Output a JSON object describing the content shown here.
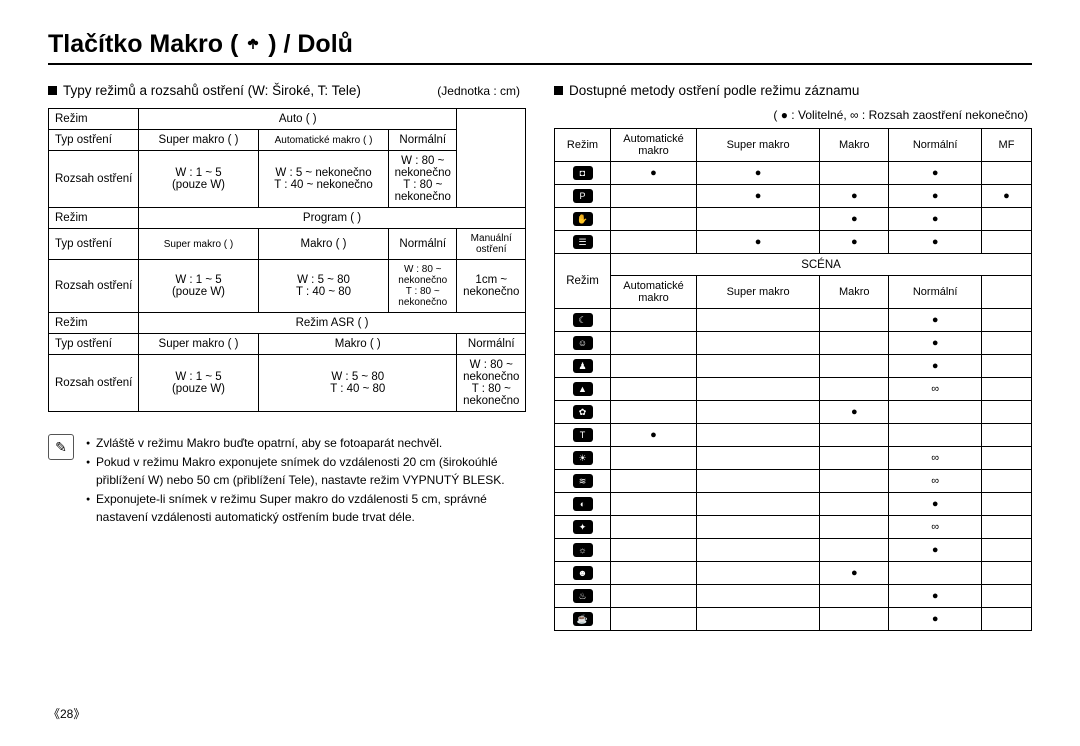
{
  "title": "Tlačítko Makro (    ) / Dolů",
  "left": {
    "heading": "Typy režimů a rozsahů ostření (W: Široké, T: Tele)",
    "unit": "(Jednotka : cm)",
    "t1": {
      "rMode": "Režim",
      "rType": "Typ ostření",
      "rRange": "Rozsah ostření",
      "auto": "Auto (     )",
      "program": "Program (     )",
      "asr": "Režim ASR (     )",
      "superMakro": "Super makro (   )",
      "superMakroSm": "Super makro (   )",
      "autoMakro": "Automatické makro (    )",
      "makro": "Makro (    )",
      "normalni": "Normální",
      "manual": "Manuální ostření",
      "w15": "W : 1 ~ 5",
      "pouzeW": "(pouze W)",
      "w5inf": "W : 5 ~ nekonečno",
      "t40inf": "T : 40 ~ nekonečno",
      "w80inf": "W : 80 ~ nekonečno",
      "t80inf": "T : 80 ~ nekonečno",
      "w580": "W : 5 ~ 80",
      "t4080": "T : 40 ~ 80",
      "w80infSm": "W : 80 ~ nekonečno",
      "t80infSm": "T : 80 ~ nekonečno",
      "cm1": "1cm ~",
      "nekon": "nekonečno"
    },
    "notes": [
      "Zvláště v režimu Makro buďte opatrní, aby se fotoaparát nechvěl.",
      "Pokud v režimu Makro exponujete snímek do vzdálenosti 20 cm (širokoúhlé přiblížení W) nebo 50 cm (přiblížení Tele), nastavte režim VYPNUTÝ BLESK.",
      "Exponujete-li snímek v režimu Super makro do vzdálenosti 5 cm, správné nastavení vzdálenosti automatický ostřením bude trvat déle."
    ]
  },
  "right": {
    "heading": "Dostupné metody ostření podle režimu záznamu",
    "legend": "( ● : Volitelné,  ∞ : Rozsah zaostření nekonečno)",
    "hRezim": "Režim",
    "hAuto": "Automatické makro",
    "hSuper": "Super makro",
    "hMakro": "Makro",
    "hNorm": "Normální",
    "hMF": "MF",
    "scena": "SCÉNA",
    "rows1": [
      {
        "k": "auto",
        "c": [
          "●",
          "●",
          "",
          "●",
          ""
        ]
      },
      {
        "k": "program",
        "c": [
          "",
          "●",
          "●",
          "●",
          "●"
        ]
      },
      {
        "k": "asr",
        "c": [
          "",
          "",
          "●",
          "●",
          ""
        ]
      },
      {
        "k": "video",
        "c": [
          "",
          "●",
          "●",
          "●",
          ""
        ]
      }
    ],
    "rows2": [
      {
        "k": "night",
        "c": [
          "",
          "",
          "",
          "●",
          ""
        ]
      },
      {
        "k": "portrait",
        "c": [
          "",
          "",
          "",
          "●",
          ""
        ]
      },
      {
        "k": "children",
        "c": [
          "",
          "",
          "",
          "●",
          ""
        ]
      },
      {
        "k": "landscape",
        "c": [
          "",
          "",
          "",
          "∞",
          ""
        ]
      },
      {
        "k": "closeup",
        "c": [
          "",
          "",
          "●",
          "",
          ""
        ]
      },
      {
        "k": "text",
        "c": [
          "●",
          "",
          "",
          "",
          ""
        ]
      },
      {
        "k": "sunset",
        "c": [
          "",
          "",
          "",
          "∞",
          ""
        ]
      },
      {
        "k": "dawn",
        "c": [
          "",
          "",
          "",
          "∞",
          ""
        ]
      },
      {
        "k": "backlight",
        "c": [
          "",
          "",
          "",
          "●",
          ""
        ]
      },
      {
        "k": "fireworks",
        "c": [
          "",
          "",
          "",
          "∞",
          ""
        ]
      },
      {
        "k": "beach",
        "c": [
          "",
          "",
          "",
          "●",
          ""
        ]
      },
      {
        "k": "selfshot",
        "c": [
          "",
          "",
          "●",
          "",
          ""
        ]
      },
      {
        "k": "food",
        "c": [
          "",
          "",
          "",
          "●",
          ""
        ]
      },
      {
        "k": "cafe",
        "c": [
          "",
          "",
          "",
          "●",
          ""
        ]
      }
    ]
  },
  "pageNum": "《28》"
}
